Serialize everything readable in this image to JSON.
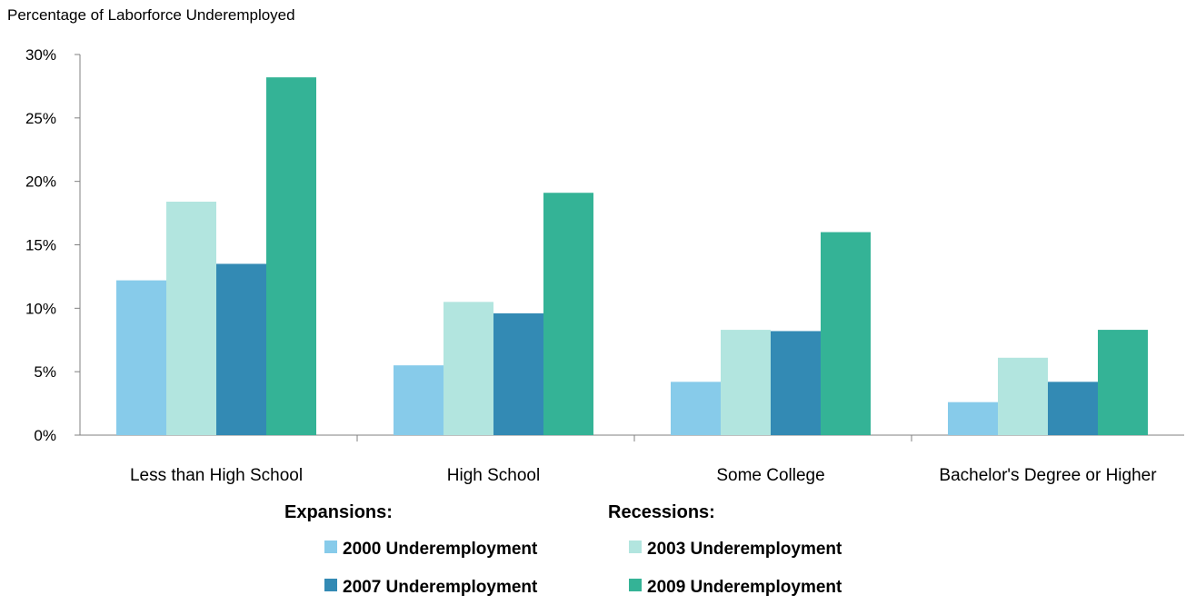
{
  "chart_data": {
    "type": "bar",
    "ylabel": "Percentage of Laborforce Underemployed",
    "categories": [
      "Less than High School",
      "High School",
      "Some College",
      "Bachelor's Degree or Higher"
    ],
    "series": [
      {
        "name": "2000 Underemployment",
        "color": "#87CBEA",
        "values": [
          12.2,
          5.5,
          4.2,
          2.6
        ]
      },
      {
        "name": "2003 Underemployment",
        "color": "#B2E5DF",
        "values": [
          18.4,
          10.5,
          8.3,
          6.1
        ]
      },
      {
        "name": "2007 Underemployment",
        "color": "#338AB4",
        "values": [
          13.5,
          9.6,
          8.2,
          4.2
        ]
      },
      {
        "name": "2009 Underemployment",
        "color": "#34B396",
        "values": [
          28.2,
          19.1,
          16.0,
          8.3
        ]
      }
    ],
    "ylim": [
      0,
      30
    ],
    "yticks": [
      {
        "value": 0,
        "label": "0%"
      },
      {
        "value": 5,
        "label": "5%"
      },
      {
        "value": 10,
        "label": "10%"
      },
      {
        "value": 15,
        "label": "15%"
      },
      {
        "value": 20,
        "label": "20%"
      },
      {
        "value": 25,
        "label": "25%"
      },
      {
        "value": 30,
        "label": "30%"
      }
    ],
    "grid": false,
    "legend": {
      "position": "bottom",
      "groups": [
        {
          "title": "Expansions:",
          "series": [
            "2000 Underemployment",
            "2007 Underemployment"
          ]
        },
        {
          "title": "Recessions:",
          "series": [
            "2003 Underemployment",
            "2009 Underemployment"
          ]
        }
      ]
    }
  }
}
